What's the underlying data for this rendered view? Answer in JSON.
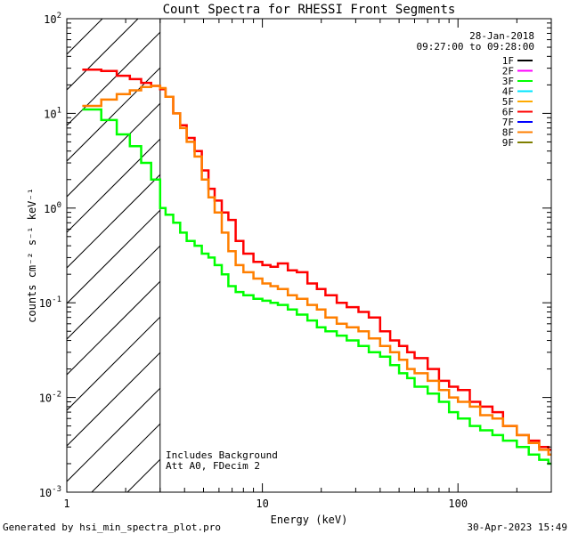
{
  "chart_data": {
    "type": "line",
    "title": "Count Spectra for RHESSI Front Segments",
    "xlabel": "Energy (keV)",
    "ylabel": "counts cm⁻² s⁻¹ keV⁻¹",
    "xscale": "log",
    "yscale": "log",
    "xlim": [
      1,
      300
    ],
    "ylim": [
      0.001,
      100
    ],
    "x_ticks": [
      {
        "value": 1,
        "label": "1"
      },
      {
        "value": 10,
        "label": "10"
      },
      {
        "value": 100,
        "label": "100"
      }
    ],
    "y_ticks": [
      {
        "value": 100,
        "base": "10",
        "exp": "2"
      },
      {
        "value": 10,
        "base": "10",
        "exp": "1"
      },
      {
        "value": 1,
        "base": "10",
        "exp": "0"
      },
      {
        "value": 0.1,
        "base": "10",
        "exp": "-1"
      },
      {
        "value": 0.01,
        "base": "10",
        "exp": "-2"
      },
      {
        "value": 0.001,
        "base": "10",
        "exp": "-3"
      }
    ],
    "date": "28-Jan-2018",
    "time_range": "09:27:00 to 09:28:00",
    "excluded_region": {
      "from": 1,
      "to": 3
    },
    "annotations": [
      "Includes Background",
      "Att A0, FDecim 2"
    ],
    "legend": [
      {
        "name": "1F",
        "color": "#000000"
      },
      {
        "name": "2F",
        "color": "#ff00ff"
      },
      {
        "name": "3F",
        "color": "#00ff00"
      },
      {
        "name": "4F",
        "color": "#00e5ff"
      },
      {
        "name": "5F",
        "color": "#ffaa00"
      },
      {
        "name": "6F",
        "color": "#ff0000"
      },
      {
        "name": "7F",
        "color": "#0000ff"
      },
      {
        "name": "8F",
        "color": "#ff7f00"
      },
      {
        "name": "9F",
        "color": "#7f7f00"
      }
    ],
    "series": [
      {
        "name": "6F",
        "color": "#ff0000",
        "points": [
          [
            1.2,
            29
          ],
          [
            1.5,
            28
          ],
          [
            1.8,
            25
          ],
          [
            2.1,
            23
          ],
          [
            2.4,
            21
          ],
          [
            2.7,
            19.5
          ],
          [
            3.0,
            18
          ],
          [
            3.2,
            15
          ],
          [
            3.5,
            10
          ],
          [
            3.8,
            7.5
          ],
          [
            4.1,
            5.5
          ],
          [
            4.5,
            4.0
          ],
          [
            4.9,
            2.5
          ],
          [
            5.3,
            1.6
          ],
          [
            5.7,
            1.2
          ],
          [
            6.2,
            0.9
          ],
          [
            6.7,
            0.75
          ],
          [
            7.3,
            0.45
          ],
          [
            8,
            0.33
          ],
          [
            9,
            0.27
          ],
          [
            10,
            0.25
          ],
          [
            11,
            0.24
          ],
          [
            12,
            0.26
          ],
          [
            13.5,
            0.22
          ],
          [
            15,
            0.21
          ],
          [
            17,
            0.16
          ],
          [
            19,
            0.14
          ],
          [
            21,
            0.12
          ],
          [
            24,
            0.1
          ],
          [
            27,
            0.09
          ],
          [
            31,
            0.08
          ],
          [
            35,
            0.07
          ],
          [
            40,
            0.05
          ],
          [
            45,
            0.04
          ],
          [
            50,
            0.035
          ],
          [
            55,
            0.03
          ],
          [
            60,
            0.026
          ],
          [
            70,
            0.02
          ],
          [
            80,
            0.015
          ],
          [
            90,
            0.013
          ],
          [
            100,
            0.012
          ],
          [
            115,
            0.009
          ],
          [
            130,
            0.008
          ],
          [
            150,
            0.007
          ],
          [
            170,
            0.005
          ],
          [
            200,
            0.004
          ],
          [
            230,
            0.0035
          ],
          [
            260,
            0.003
          ],
          [
            290,
            0.0028
          ]
        ]
      },
      {
        "name": "8F",
        "color": "#ff7f00",
        "points": [
          [
            1.2,
            12
          ],
          [
            1.5,
            14
          ],
          [
            1.8,
            16
          ],
          [
            2.1,
            17.5
          ],
          [
            2.4,
            19
          ],
          [
            2.7,
            19.5
          ],
          [
            3.0,
            18.5
          ],
          [
            3.2,
            15
          ],
          [
            3.5,
            10
          ],
          [
            3.8,
            7.0
          ],
          [
            4.1,
            5.0
          ],
          [
            4.5,
            3.5
          ],
          [
            4.9,
            2.0
          ],
          [
            5.3,
            1.3
          ],
          [
            5.7,
            0.9
          ],
          [
            6.2,
            0.55
          ],
          [
            6.7,
            0.35
          ],
          [
            7.3,
            0.25
          ],
          [
            8,
            0.21
          ],
          [
            9,
            0.18
          ],
          [
            10,
            0.16
          ],
          [
            11,
            0.15
          ],
          [
            12,
            0.14
          ],
          [
            13.5,
            0.12
          ],
          [
            15,
            0.11
          ],
          [
            17,
            0.095
          ],
          [
            19,
            0.085
          ],
          [
            21,
            0.07
          ],
          [
            24,
            0.06
          ],
          [
            27,
            0.055
          ],
          [
            31,
            0.05
          ],
          [
            35,
            0.042
          ],
          [
            40,
            0.035
          ],
          [
            45,
            0.03
          ],
          [
            50,
            0.025
          ],
          [
            55,
            0.02
          ],
          [
            60,
            0.018
          ],
          [
            70,
            0.015
          ],
          [
            80,
            0.012
          ],
          [
            90,
            0.01
          ],
          [
            100,
            0.009
          ],
          [
            115,
            0.008
          ],
          [
            130,
            0.0065
          ],
          [
            150,
            0.006
          ],
          [
            170,
            0.005
          ],
          [
            200,
            0.004
          ],
          [
            230,
            0.0033
          ],
          [
            260,
            0.0028
          ],
          [
            290,
            0.0025
          ]
        ]
      },
      {
        "name": "3F",
        "color": "#00ff00",
        "points": [
          [
            1.2,
            11
          ],
          [
            1.5,
            8.5
          ],
          [
            1.8,
            6.0
          ],
          [
            2.1,
            4.5
          ],
          [
            2.4,
            3.0
          ],
          [
            2.7,
            2.0
          ],
          [
            3.0,
            1.0
          ],
          [
            3.2,
            0.85
          ],
          [
            3.5,
            0.7
          ],
          [
            3.8,
            0.55
          ],
          [
            4.1,
            0.45
          ],
          [
            4.5,
            0.4
          ],
          [
            4.9,
            0.33
          ],
          [
            5.3,
            0.3
          ],
          [
            5.7,
            0.25
          ],
          [
            6.2,
            0.2
          ],
          [
            6.7,
            0.15
          ],
          [
            7.3,
            0.13
          ],
          [
            8,
            0.12
          ],
          [
            9,
            0.11
          ],
          [
            10,
            0.105
          ],
          [
            11,
            0.1
          ],
          [
            12,
            0.095
          ],
          [
            13.5,
            0.085
          ],
          [
            15,
            0.075
          ],
          [
            17,
            0.065
          ],
          [
            19,
            0.055
          ],
          [
            21,
            0.05
          ],
          [
            24,
            0.045
          ],
          [
            27,
            0.04
          ],
          [
            31,
            0.035
          ],
          [
            35,
            0.03
          ],
          [
            40,
            0.027
          ],
          [
            45,
            0.022
          ],
          [
            50,
            0.018
          ],
          [
            55,
            0.016
          ],
          [
            60,
            0.013
          ],
          [
            70,
            0.011
          ],
          [
            80,
            0.009
          ],
          [
            90,
            0.007
          ],
          [
            100,
            0.006
          ],
          [
            115,
            0.005
          ],
          [
            130,
            0.0045
          ],
          [
            150,
            0.004
          ],
          [
            170,
            0.0035
          ],
          [
            200,
            0.003
          ],
          [
            230,
            0.0025
          ],
          [
            260,
            0.0022
          ],
          [
            290,
            0.002
          ]
        ]
      }
    ]
  },
  "footer": {
    "generated_by": "Generated by hsi_min_spectra_plot.pro",
    "timestamp": "30-Apr-2023 15:49"
  }
}
